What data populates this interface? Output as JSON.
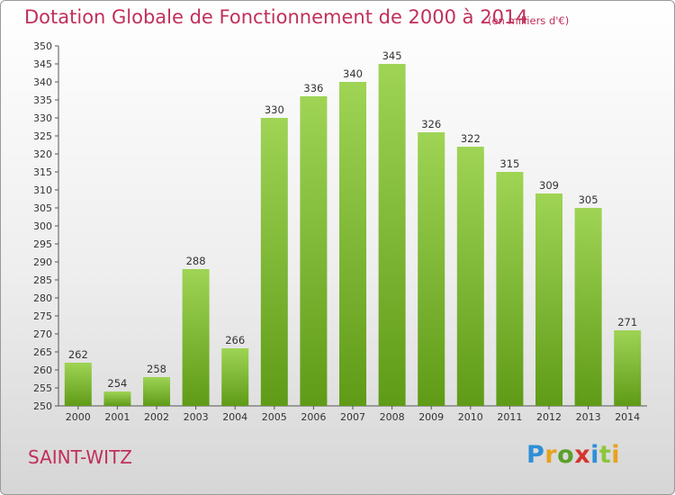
{
  "title": "Dotation Globale de Fonctionnement de 2000 à 2014",
  "unit": "(en milliers d'€)",
  "commune": "SAINT-WITZ",
  "logo": {
    "text": "Proxiti",
    "letter_colors": [
      "#2f8fd6",
      "#e8a21f",
      "#5aa02c",
      "#d6342f",
      "#2f8fd6",
      "#8cc63f",
      "#e8a21f"
    ]
  },
  "colors": {
    "accent": "#c0305a",
    "bar_top": "#9fd455",
    "bar_bottom": "#5f9b17"
  },
  "chart_data": {
    "type": "bar",
    "categories": [
      "2000",
      "2001",
      "2002",
      "2003",
      "2004",
      "2005",
      "2006",
      "2007",
      "2008",
      "2009",
      "2010",
      "2011",
      "2012",
      "2013",
      "2014"
    ],
    "values": [
      262,
      254,
      258,
      288,
      266,
      330,
      336,
      340,
      345,
      326,
      322,
      315,
      309,
      305,
      271
    ],
    "ylim": [
      250,
      350
    ],
    "ytick_step": 5,
    "grid": false,
    "legend": "none"
  }
}
